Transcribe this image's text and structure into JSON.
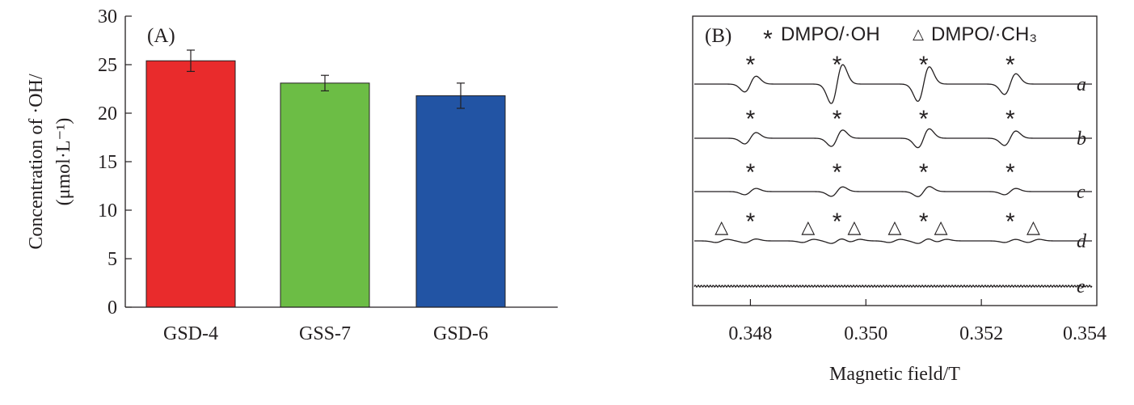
{
  "chart_data": [
    {
      "type": "bar",
      "panel_label": "(A)",
      "categories": [
        "GSD-4",
        "GSS-7",
        "GSD-6"
      ],
      "values": [
        25.4,
        23.1,
        21.8
      ],
      "errors": [
        1.1,
        0.8,
        1.3
      ],
      "colors": [
        "#e92b2c",
        "#6cbd45",
        "#2254a4"
      ],
      "ylabel_line1": "Concentration of ·OH/",
      "ylabel_line2": "(μmol·L⁻¹)",
      "ylim": [
        0,
        30
      ],
      "yticks": [
        0,
        5,
        10,
        15,
        20,
        25,
        30
      ],
      "grid": false
    },
    {
      "type": "line",
      "panel_label": "(B)",
      "legend": {
        "oh_marker": "*",
        "oh_label": "DMPO/·OH",
        "ch3_marker": "△",
        "ch3_label": "DMPO/·CH₃",
        "position": "top"
      },
      "xlabel": "Magnetic field/T",
      "xlim": [
        0.347,
        0.354
      ],
      "xticks": [
        "0.348",
        "0.350",
        "0.352",
        "0.354"
      ],
      "peak_positions_oh": [
        0.348,
        0.3495,
        0.351,
        0.3525
      ],
      "peak_positions_ch3": [
        0.3475,
        0.349,
        0.3498,
        0.3505,
        0.3513,
        0.3529
      ],
      "series": [
        {
          "name": "a",
          "oh_amplitude": [
            0.25,
            0.62,
            0.55,
            0.33
          ],
          "ch3_amplitude": 0
        },
        {
          "name": "b",
          "oh_amplitude": [
            0.18,
            0.26,
            0.3,
            0.23
          ],
          "ch3_amplitude": 0
        },
        {
          "name": "c",
          "oh_amplitude": [
            0.1,
            0.15,
            0.16,
            0.1
          ],
          "ch3_amplitude": 0
        },
        {
          "name": "d",
          "oh_amplitude": [
            0.06,
            0.08,
            0.08,
            0.05
          ],
          "ch3_amplitude": 0.05
        },
        {
          "name": "e",
          "oh_amplitude": [
            0,
            0,
            0,
            0
          ],
          "ch3_amplitude": 0
        }
      ]
    }
  ]
}
